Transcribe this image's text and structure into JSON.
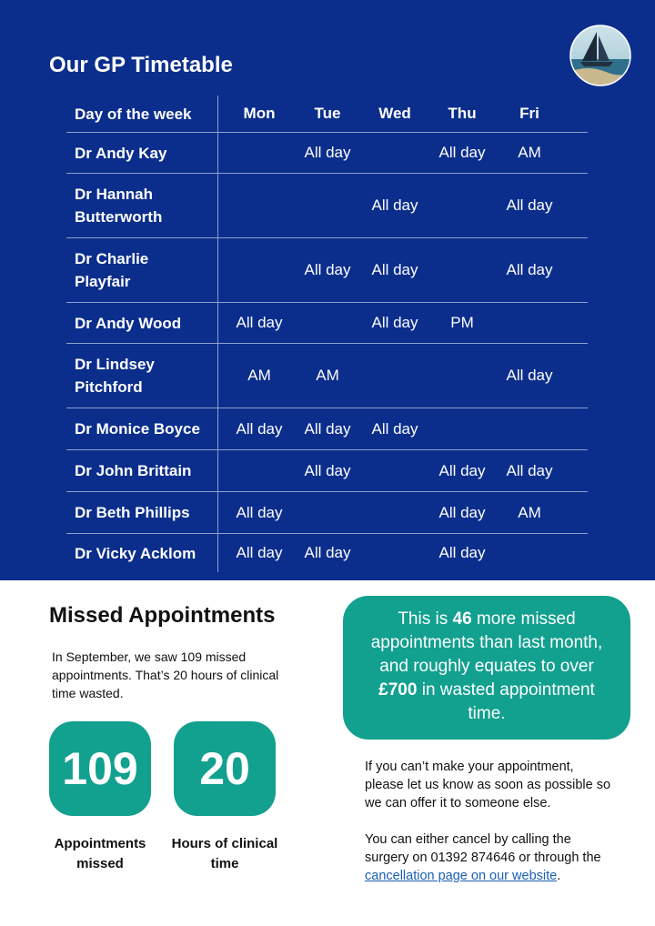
{
  "header": {
    "title": "Our GP Timetable"
  },
  "timetable": {
    "columns": [
      "Day of the week",
      "Mon",
      "Tue",
      "Wed",
      "Thu",
      "Fri"
    ],
    "rows": [
      [
        "Dr Andy Kay",
        null,
        "All day",
        null,
        "All day",
        "AM"
      ],
      [
        "Dr Hannah Butterworth",
        null,
        null,
        "All day",
        null,
        "All day"
      ],
      [
        "Dr Charlie Playfair",
        null,
        "All day",
        "All day",
        null,
        "All day"
      ],
      [
        "Dr Andy Wood",
        "All day",
        null,
        "All day",
        "PM",
        null
      ],
      [
        "Dr Lindsey Pitchford",
        "AM",
        "AM",
        null,
        null,
        "All day"
      ],
      [
        "Dr Monice Boyce",
        "All day",
        "All day",
        "All day",
        null,
        null
      ],
      [
        "Dr John Brittain",
        null,
        "All day",
        null,
        "All day",
        "All day"
      ],
      [
        "Dr Beth Phillips",
        "All day",
        null,
        null,
        "All day",
        "AM"
      ],
      [
        "Dr Vicky Acklom",
        "All day",
        "All day",
        null,
        "All day",
        null
      ]
    ]
  },
  "missed": {
    "title": "Missed Appointments",
    "intro": "In September, we saw 109 missed appointments. That’s 20 hours of clinical time wasted.",
    "stats": [
      {
        "value": 109,
        "label": "Appointments missed"
      },
      {
        "value": 20,
        "label": "Hours of clinical time"
      }
    ],
    "callout": [
      "This is ",
      "46",
      " more missed appointments than last month, and roughly equates to over ",
      "£700",
      " in wasted appointment time."
    ],
    "info": {
      "paragraph1": "If you can’t make your appointment, please let us know as soon as possible so we can offer it to someone else.",
      "paragraph2": [
        "You can either cancel by calling the surgery on 01392 874646 or through the ",
        "cancellation page on our website",
        "."
      ]
    }
  }
}
